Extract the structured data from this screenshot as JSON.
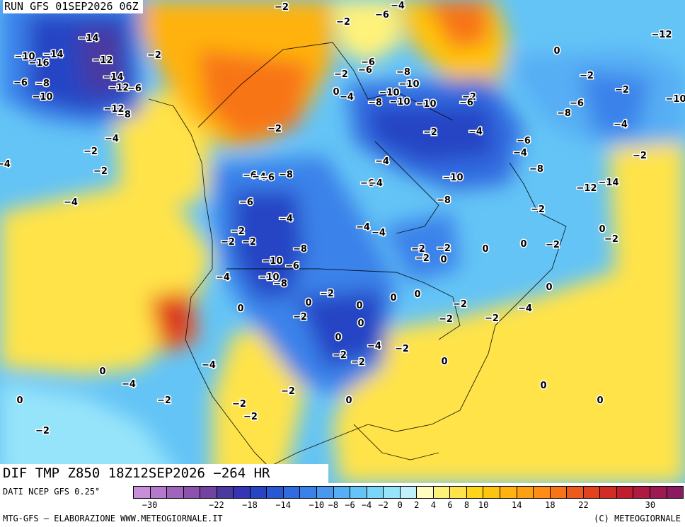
{
  "header": {
    "run_title": "RUN GFS 01SEP2026 06Z"
  },
  "product": {
    "title": "DIF TMP Z850 18Z12SEP2026 −264 HR"
  },
  "footer": {
    "data_source": "DATI NCEP GFS 0.25°",
    "credits": "MTG-GFS — ELABORAZIONE WWW.METEOGIORNALE.IT",
    "copyright": "(C) METEOGIORNALE"
  },
  "legend": {
    "colors": [
      "#c88fd8",
      "#b479cc",
      "#a064bd",
      "#8c52ad",
      "#72449f",
      "#4a3aa0",
      "#3434b4",
      "#2644c4",
      "#2a58d4",
      "#306ce0",
      "#3a82ea",
      "#4898f0",
      "#56aef4",
      "#64c4f6",
      "#7ad6f8",
      "#96e4fa",
      "#bff0fc",
      "#fffcc0",
      "#fff27a",
      "#ffe34a",
      "#ffd51a",
      "#ffc410",
      "#ffb210",
      "#ffa010",
      "#ff8c14",
      "#f87418",
      "#ee5a1c",
      "#e2421e",
      "#d22c24",
      "#c01e2e",
      "#ae1a40",
      "#9c1a50",
      "#8c1a5e"
    ],
    "tick_labels": [
      {
        "v": -30,
        "t": "−30"
      },
      {
        "v": -22,
        "t": "−22"
      },
      {
        "v": -18,
        "t": "−18"
      },
      {
        "v": -14,
        "t": "−14"
      },
      {
        "v": -10,
        "t": "−10"
      },
      {
        "v": -8,
        "t": "−8"
      },
      {
        "v": -6,
        "t": "−6"
      },
      {
        "v": -4,
        "t": "−4"
      },
      {
        "v": -2,
        "t": "−2"
      },
      {
        "v": 0,
        "t": "0"
      },
      {
        "v": 2,
        "t": "2"
      },
      {
        "v": 4,
        "t": "4"
      },
      {
        "v": 6,
        "t": "6"
      },
      {
        "v": 8,
        "t": "8"
      },
      {
        "v": 10,
        "t": "10"
      },
      {
        "v": 14,
        "t": "14"
      },
      {
        "v": 18,
        "t": "18"
      },
      {
        "v": 22,
        "t": "22"
      },
      {
        "v": 30,
        "t": "30"
      }
    ]
  },
  "contour_labels": [
    "-2",
    "-6",
    "-4",
    "-2",
    "-14",
    "-10",
    "-14",
    "-12",
    "-16",
    "-2",
    "-6",
    "-8",
    "-10",
    "-14",
    "-12",
    "-12",
    "-8",
    "-4",
    "-6",
    "-2",
    "-2",
    "-4",
    "-4",
    "-6",
    "-2",
    "-6",
    "-8",
    "-10",
    "-10",
    "-4",
    "-8",
    "-10",
    "-10",
    "-2",
    "-6",
    "-2",
    "-4",
    "-6",
    "-4",
    "-2",
    "0",
    "-2",
    "0",
    "-2",
    "-2",
    "-6",
    "-8",
    "-4",
    "-12",
    "-10",
    "-4",
    "-6",
    "-4",
    "-10",
    "-8",
    "-12",
    "-14",
    "-8",
    "-6",
    "-4",
    "-6",
    "-8",
    "-6",
    "-4",
    "-2",
    "-2",
    "-2",
    "-4",
    "-4",
    "-8",
    "-10",
    "-6",
    "-10",
    "-8",
    "-4",
    "-2",
    "-2",
    "-2",
    "0",
    "0",
    "0",
    "-2",
    "0",
    "-2",
    "-2",
    "0",
    "-4",
    "-2",
    "-2",
    "-2",
    "0",
    "0",
    "-2",
    "0",
    "0",
    "0",
    "-2",
    "0",
    "0",
    "-4",
    "-2",
    "-2",
    "-2",
    "0",
    "0",
    "0",
    "0",
    "-2",
    "-4",
    "-2",
    "-2",
    "-2",
    "0",
    "-4",
    "0",
    "-2"
  ]
}
